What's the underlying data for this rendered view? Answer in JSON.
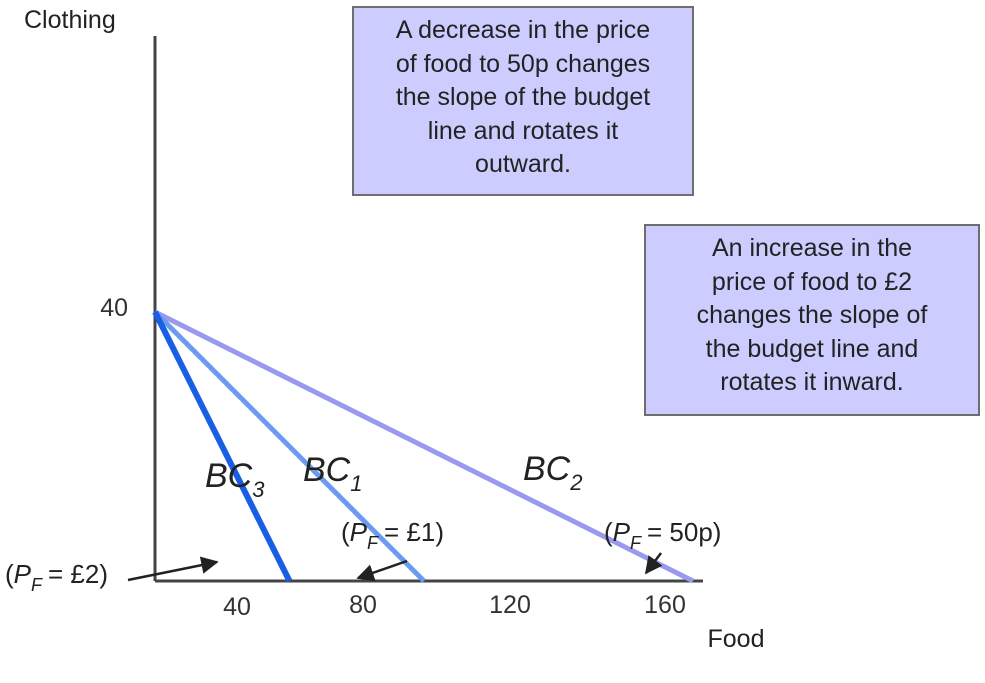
{
  "chart_data": {
    "type": "line",
    "xlabel": "Food",
    "ylabel": "Clothing",
    "x_ticks": [
      "40",
      "80",
      "120",
      "160"
    ],
    "y_ticks": [
      "40"
    ],
    "xlim": [
      0,
      160
    ],
    "ylim": [
      0,
      40
    ],
    "series": [
      {
        "name": "BC",
        "sub": "1",
        "color": "#6b9bef",
        "points": [
          [
            0,
            40
          ],
          [
            80,
            0
          ]
        ],
        "price_label": "= £1)"
      },
      {
        "name": "BC",
        "sub": "2",
        "color": "#9999ee",
        "points": [
          [
            0,
            40
          ],
          [
            160,
            0
          ]
        ],
        "price_label": "= 50p)"
      },
      {
        "name": "BC",
        "sub": "3",
        "color": "#1a5ee6",
        "points": [
          [
            0,
            40
          ],
          [
            40,
            0
          ]
        ],
        "price_label": "= £2)"
      }
    ],
    "price_symbol": {
      "open": "(",
      "var": "P",
      "sub": "F"
    },
    "annotations": [
      {
        "id": "decrease",
        "lines": [
          "A decrease in the price",
          "of food to 50p changes",
          "the slope of the budget",
          "line and rotates it",
          "outward."
        ]
      },
      {
        "id": "increase",
        "lines": [
          "An increase in the",
          "price of food to £2",
          "changes the slope of",
          "the budget line and",
          "rotates it inward."
        ]
      }
    ],
    "colors": {
      "axis": "#444444",
      "annotation_bg": "#ccccff",
      "annotation_border": "#6e6e6e",
      "arrow": "#222222"
    }
  }
}
